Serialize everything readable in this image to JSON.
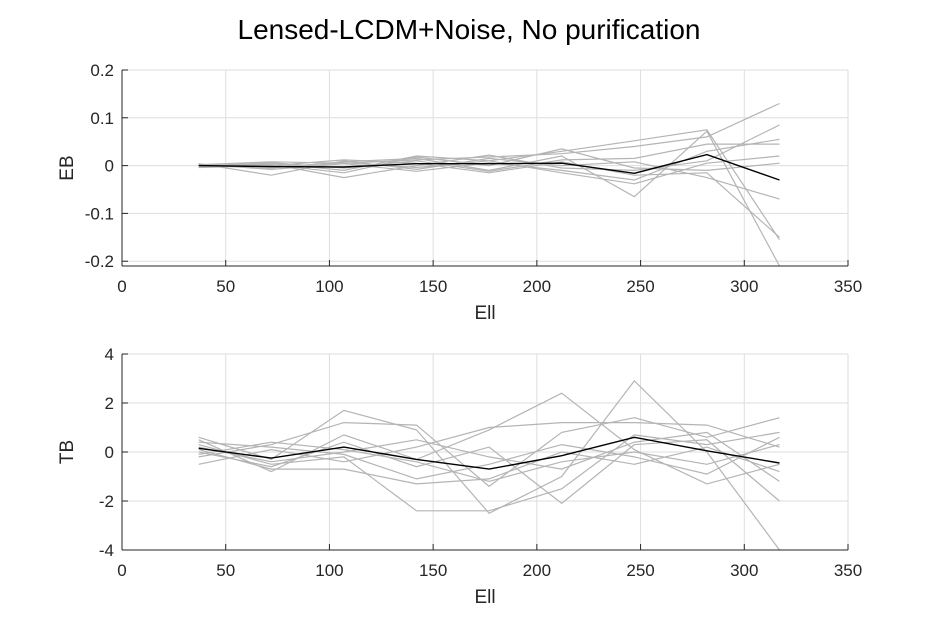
{
  "figure": {
    "title": "Lensed-LCDM+Noise, No purification"
  },
  "chart_data": [
    {
      "type": "line",
      "ylabel": "EB",
      "xlabel": "Ell",
      "xlim": [
        0,
        350
      ],
      "ylim": [
        -0.21,
        0.2
      ],
      "xticks": [
        0,
        50,
        100,
        150,
        200,
        250,
        300,
        350
      ],
      "yticks": [
        -0.2,
        -0.1,
        0,
        0.1,
        0.2
      ],
      "xtick_labels": [
        "0",
        "50",
        "100",
        "150",
        "200",
        "250",
        "300",
        "350"
      ],
      "ytick_labels": [
        "-0.2",
        "-0.1",
        "0",
        "0.1",
        "0.2"
      ],
      "grid": true,
      "x": [
        37,
        72,
        107,
        142,
        177,
        212,
        247,
        282,
        317
      ],
      "mean_series": {
        "values": [
          0.0,
          -0.002,
          -0.003,
          0.004,
          0.004,
          0.005,
          -0.016,
          0.023,
          -0.03
        ],
        "color": "#000000"
      },
      "realization_color": "#b4b4b4",
      "series": [
        {
          "values": [
            0.002,
            0.008,
            0.005,
            0.012,
            0.018,
            0.025,
            0.04,
            0.06,
            0.13
          ]
        },
        {
          "values": [
            -0.002,
            0.005,
            -0.01,
            0.02,
            0.01,
            0.03,
            0.052,
            0.075,
            -0.155
          ]
        },
        {
          "values": [
            0.001,
            -0.005,
            0.008,
            0.015,
            -0.01,
            0.02,
            -0.065,
            0.072,
            -0.21
          ]
        },
        {
          "values": [
            -0.003,
            0.003,
            -0.025,
            0.0,
            0.022,
            -0.005,
            -0.01,
            0.01,
            0.085
          ]
        },
        {
          "values": [
            0.004,
            -0.02,
            0.01,
            -0.008,
            0.015,
            0.0,
            0.008,
            -0.025,
            -0.07
          ]
        },
        {
          "values": [
            -0.001,
            0.006,
            -0.005,
            0.01,
            -0.012,
            0.012,
            0.015,
            0.045,
            0.045
          ]
        },
        {
          "values": [
            0.003,
            -0.008,
            0.004,
            -0.012,
            0.006,
            -0.01,
            -0.03,
            0.03,
            0.055
          ]
        },
        {
          "values": [
            -0.004,
            0.0,
            0.012,
            0.005,
            -0.015,
            0.008,
            -0.02,
            -0.015,
            -0.15
          ]
        },
        {
          "values": [
            0.0,
            0.002,
            -0.015,
            0.018,
            0.0,
            0.035,
            -0.005,
            -0.01,
            0.005
          ]
        },
        {
          "values": [
            0.002,
            -0.003,
            0.006,
            -0.004,
            0.01,
            -0.015,
            -0.038,
            0.005,
            0.02
          ]
        }
      ]
    },
    {
      "type": "line",
      "ylabel": "TB",
      "xlabel": "Ell",
      "xlim": [
        0,
        350
      ],
      "ylim": [
        -4,
        4
      ],
      "xticks": [
        0,
        50,
        100,
        150,
        200,
        250,
        300,
        350
      ],
      "yticks": [
        -4,
        -2,
        0,
        2,
        4
      ],
      "xtick_labels": [
        "0",
        "50",
        "100",
        "150",
        "200",
        "250",
        "300",
        "350"
      ],
      "ytick_labels": [
        "-4",
        "-2",
        "0",
        "2",
        "4"
      ],
      "grid": true,
      "x": [
        37,
        72,
        107,
        142,
        177,
        212,
        247,
        282,
        317
      ],
      "mean_series": {
        "values": [
          0.15,
          -0.25,
          0.2,
          -0.3,
          -0.7,
          -0.15,
          0.6,
          0.05,
          -0.45
        ],
        "color": "#000000"
      },
      "realization_color": "#b4b4b4",
      "series": [
        {
          "values": [
            0.6,
            -0.3,
            1.7,
            0.9,
            -2.5,
            -1.0,
            2.9,
            0.0,
            -4.0
          ]
        },
        {
          "values": [
            0.5,
            -0.8,
            0.7,
            -0.3,
            0.9,
            2.4,
            0.1,
            -1.3,
            -0.5
          ]
        },
        {
          "values": [
            -0.2,
            0.3,
            1.2,
            1.1,
            -1.4,
            0.8,
            1.4,
            0.6,
            1.4
          ]
        },
        {
          "values": [
            0.3,
            -0.5,
            -0.2,
            -2.4,
            -2.4,
            -1.5,
            0.7,
            0.3,
            0.8
          ]
        },
        {
          "values": [
            -0.5,
            0.1,
            -0.4,
            0.2,
            1.0,
            1.2,
            1.2,
            1.1,
            0.2
          ]
        },
        {
          "values": [
            0.0,
            -0.6,
            0.4,
            -0.6,
            0.2,
            -2.1,
            0.3,
            0.5,
            -2.0
          ]
        },
        {
          "values": [
            0.4,
            0.2,
            -0.1,
            -1.1,
            -0.5,
            0.3,
            -0.2,
            -0.9,
            0.6
          ]
        },
        {
          "values": [
            0.2,
            -0.4,
            0.0,
            0.5,
            -0.2,
            -0.7,
            0.4,
            0.8,
            -1.2
          ]
        },
        {
          "values": [
            -0.1,
            0.4,
            0.1,
            -0.4,
            -1.2,
            -0.4,
            0.0,
            -0.5,
            0.3
          ]
        },
        {
          "values": [
            0.1,
            -0.7,
            -0.7,
            -1.3,
            -1.1,
            0.0,
            -0.5,
            0.2,
            -0.8
          ]
        }
      ]
    }
  ]
}
